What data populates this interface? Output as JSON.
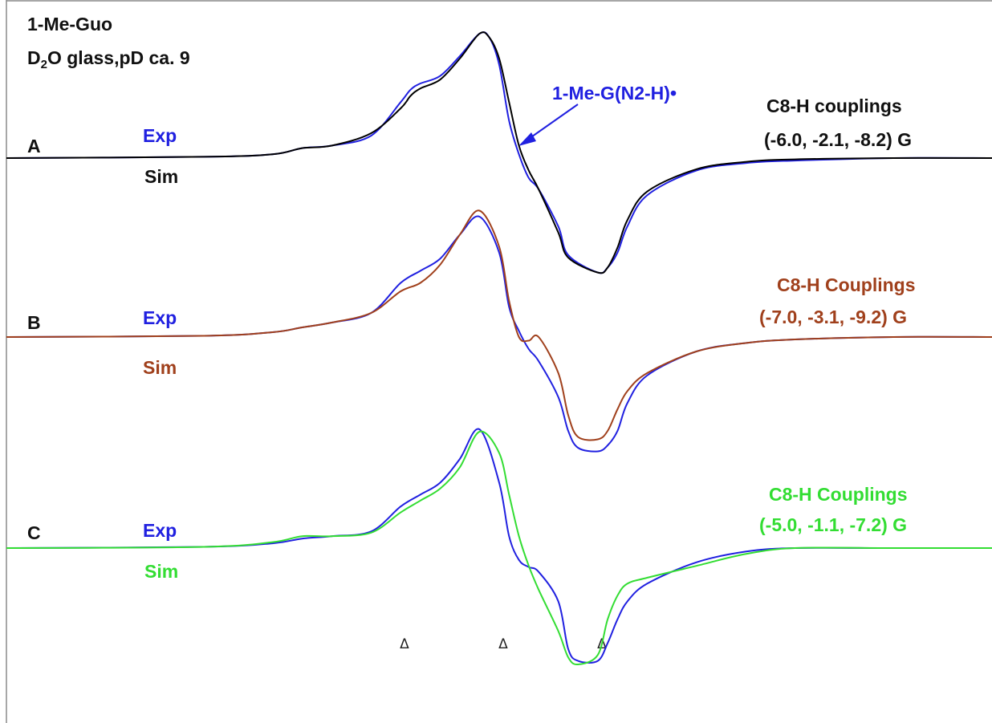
{
  "figure": {
    "sample": "1-Me-Guo",
    "conditions": {
      "prefix": "D",
      "subscript": "2",
      "suffix": "O glass,pD ca. 9"
    },
    "annotation": "1-Me-G(N2-H)•",
    "colors": {
      "exp": "#2020e0",
      "simA": "#000000",
      "simB": "#a0401c",
      "simC": "#33dd33",
      "frame": "#8a8a8a"
    },
    "panels": [
      {
        "id": "A",
        "exp_label": "Exp",
        "sim_label": "Sim",
        "coupling_title": "C8-H couplings",
        "coupling_values": "(-6.0, -2.1, -8.2) G",
        "sim_color": "#000000"
      },
      {
        "id": "B",
        "exp_label": "Exp",
        "sim_label": "Sim",
        "coupling_title": "C8-H Couplings",
        "coupling_values": "(-7.0, -3.1, -9.2) G",
        "sim_color": "#a0401c"
      },
      {
        "id": "C",
        "exp_label": "Exp",
        "sim_label": "Sim",
        "coupling_title": "C8-H Couplings",
        "coupling_values": "(-5.0, -1.1, -7.2) G",
        "sim_color": "#33dd33"
      }
    ],
    "markers": [
      "Δ",
      "Δ",
      "Δ"
    ]
  },
  "chart_data": {
    "type": "line",
    "description_units": "relative field position (0-1) vs. relative first-derivative ESR intensity (-1..1)",
    "grid": false,
    "legend": "none",
    "marker_positions": [
      0.404,
      0.508,
      0.607
    ],
    "series": [
      {
        "name": "A Exp",
        "panel": "A",
        "x": [
          0.0,
          0.2,
          0.27,
          0.3,
          0.33,
          0.37,
          0.4,
          0.41,
          0.42,
          0.44,
          0.46,
          0.48,
          0.49,
          0.5,
          0.51,
          0.52,
          0.53,
          0.54,
          0.56,
          0.57,
          0.6,
          0.61,
          0.62,
          0.63,
          0.65,
          0.7,
          0.75,
          0.8,
          0.9,
          1.0
        ],
        "y": [
          0.0,
          0.01,
          0.03,
          0.08,
          0.1,
          0.18,
          0.45,
          0.55,
          0.6,
          0.66,
          0.82,
          1.0,
          0.97,
          0.75,
          0.3,
          0.03,
          -0.16,
          -0.25,
          -0.55,
          -0.78,
          -0.92,
          -0.88,
          -0.76,
          -0.55,
          -0.3,
          -0.1,
          -0.04,
          -0.02,
          0.0,
          0.0
        ]
      },
      {
        "name": "A Sim",
        "panel": "A",
        "x": [
          0.0,
          0.2,
          0.27,
          0.3,
          0.33,
          0.37,
          0.4,
          0.41,
          0.42,
          0.44,
          0.46,
          0.48,
          0.49,
          0.5,
          0.51,
          0.52,
          0.53,
          0.54,
          0.56,
          0.57,
          0.6,
          0.61,
          0.62,
          0.63,
          0.65,
          0.7,
          0.75,
          0.8,
          0.9,
          1.0
        ],
        "y": [
          0.0,
          0.01,
          0.03,
          0.08,
          0.1,
          0.2,
          0.4,
          0.5,
          0.56,
          0.63,
          0.8,
          1.0,
          0.97,
          0.8,
          0.45,
          0.1,
          -0.1,
          -0.25,
          -0.6,
          -0.8,
          -0.92,
          -0.88,
          -0.72,
          -0.5,
          -0.27,
          -0.09,
          -0.03,
          -0.01,
          0.0,
          0.0
        ]
      },
      {
        "name": "B Exp",
        "panel": "B",
        "x": [
          0.0,
          0.2,
          0.27,
          0.3,
          0.33,
          0.37,
          0.4,
          0.42,
          0.44,
          0.46,
          0.48,
          0.5,
          0.51,
          0.52,
          0.53,
          0.54,
          0.56,
          0.57,
          0.58,
          0.6,
          0.61,
          0.62,
          0.63,
          0.65,
          0.7,
          0.75,
          0.8,
          0.9,
          1.0
        ],
        "y": [
          0.0,
          0.01,
          0.04,
          0.08,
          0.12,
          0.2,
          0.45,
          0.55,
          0.65,
          0.85,
          1.0,
          0.7,
          0.25,
          0.05,
          -0.1,
          -0.2,
          -0.5,
          -0.78,
          -0.92,
          -0.95,
          -0.9,
          -0.78,
          -0.55,
          -0.32,
          -0.12,
          -0.05,
          -0.02,
          0.0,
          0.0
        ]
      },
      {
        "name": "B Sim",
        "panel": "B",
        "x": [
          0.0,
          0.2,
          0.27,
          0.3,
          0.33,
          0.37,
          0.4,
          0.42,
          0.44,
          0.46,
          0.48,
          0.5,
          0.51,
          0.52,
          0.53,
          0.54,
          0.56,
          0.57,
          0.58,
          0.6,
          0.61,
          0.62,
          0.63,
          0.65,
          0.7,
          0.75,
          0.8,
          0.9,
          1.0
        ],
        "y": [
          0.0,
          0.01,
          0.04,
          0.08,
          0.12,
          0.2,
          0.38,
          0.45,
          0.6,
          0.85,
          1.05,
          0.75,
          0.3,
          0.0,
          -0.03,
          0.0,
          -0.3,
          -0.65,
          -0.83,
          -0.85,
          -0.78,
          -0.6,
          -0.45,
          -0.3,
          -0.12,
          -0.05,
          -0.02,
          0.0,
          0.0
        ]
      },
      {
        "name": "C Exp",
        "panel": "C",
        "x": [
          0.0,
          0.2,
          0.27,
          0.3,
          0.33,
          0.37,
          0.4,
          0.42,
          0.44,
          0.46,
          0.48,
          0.5,
          0.51,
          0.52,
          0.53,
          0.54,
          0.56,
          0.57,
          0.58,
          0.6,
          0.61,
          0.62,
          0.63,
          0.65,
          0.7,
          0.75,
          0.8,
          0.9,
          1.0
        ],
        "y": [
          0.0,
          0.01,
          0.04,
          0.08,
          0.1,
          0.14,
          0.35,
          0.45,
          0.55,
          0.75,
          1.0,
          0.55,
          0.1,
          -0.1,
          -0.16,
          -0.2,
          -0.45,
          -0.85,
          -0.95,
          -0.95,
          -0.8,
          -0.6,
          -0.45,
          -0.3,
          -0.12,
          -0.03,
          0.0,
          0.0,
          0.0
        ]
      },
      {
        "name": "C Sim",
        "panel": "C",
        "x": [
          0.0,
          0.2,
          0.27,
          0.3,
          0.33,
          0.37,
          0.4,
          0.42,
          0.44,
          0.46,
          0.48,
          0.5,
          0.51,
          0.52,
          0.53,
          0.54,
          0.56,
          0.57,
          0.58,
          0.6,
          0.61,
          0.62,
          0.63,
          0.65,
          0.7,
          0.75,
          0.8,
          0.9,
          1.0
        ],
        "y": [
          0.0,
          0.01,
          0.05,
          0.1,
          0.1,
          0.13,
          0.3,
          0.4,
          0.5,
          0.68,
          0.98,
          0.8,
          0.45,
          0.1,
          -0.15,
          -0.35,
          -0.7,
          -0.92,
          -0.98,
          -0.9,
          -0.6,
          -0.4,
          -0.3,
          -0.25,
          -0.15,
          -0.05,
          0.0,
          0.0,
          0.0
        ]
      }
    ]
  }
}
